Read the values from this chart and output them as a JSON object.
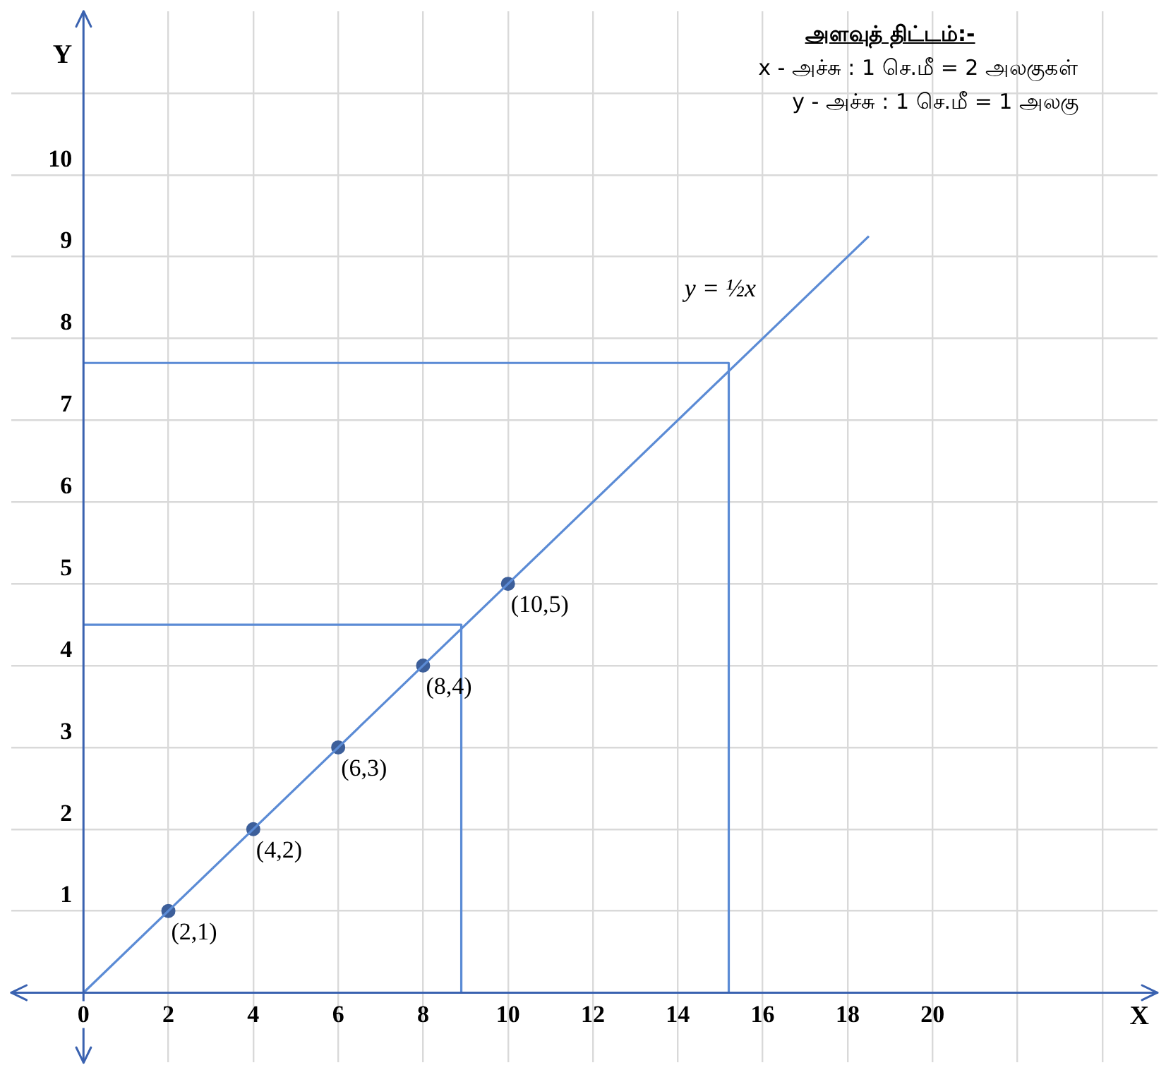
{
  "chart_data": {
    "type": "line",
    "title": "அளவுத் திட்டம்:-",
    "xlabel": "X",
    "ylabel": "Y",
    "xlim": [
      -1.7,
      25.3
    ],
    "ylim": [
      -0.85,
      12
    ],
    "xticks": [
      0,
      2,
      4,
      6,
      8,
      10,
      12,
      14,
      16,
      18,
      20,
      {
        "value": 22,
        "label": null
      },
      {
        "value": 24,
        "label": null
      }
    ],
    "yticks": [
      1,
      2,
      3,
      4,
      5,
      6,
      7,
      8,
      9,
      10,
      {
        "value": 11,
        "label": null
      }
    ],
    "grid": true,
    "legend": false,
    "series": [
      {
        "type": "line",
        "name": "y = ½x",
        "color": "#5b8bd5",
        "x": [
          0,
          18.5
        ],
        "values": [
          0,
          9.25
        ],
        "marker": "none"
      },
      {
        "type": "scatter",
        "color": "#3d5f9a",
        "x": [
          2,
          4,
          6,
          8,
          10
        ],
        "values": [
          1,
          2,
          3,
          4,
          5
        ],
        "marker": "circle"
      },
      {
        "type": "line",
        "color": "#5b8bd5",
        "x": [
          0,
          8.9,
          8.9
        ],
        "values": [
          4.5,
          4.5,
          0
        ],
        "marker": "none"
      },
      {
        "type": "line",
        "color": "#5b8bd5",
        "x": [
          0,
          15.2,
          15.2
        ],
        "values": [
          7.7,
          7.7,
          0
        ],
        "marker": "none"
      }
    ],
    "annotations": [
      {
        "text": "(2,1)",
        "x": 2,
        "y": 1
      },
      {
        "text": "(4,2)",
        "x": 4,
        "y": 2
      },
      {
        "text": "(6,3)",
        "x": 6,
        "y": 3
      },
      {
        "text": "(8,4)",
        "x": 8,
        "y": 4
      },
      {
        "text": "(10,5)",
        "x": 10,
        "y": 5
      },
      "x - அச்சு : 1 செ.மீ = 2 அலகுகள்",
      "y - அச்சு : 1 செ.மீ = 1 அலகு"
    ]
  }
}
